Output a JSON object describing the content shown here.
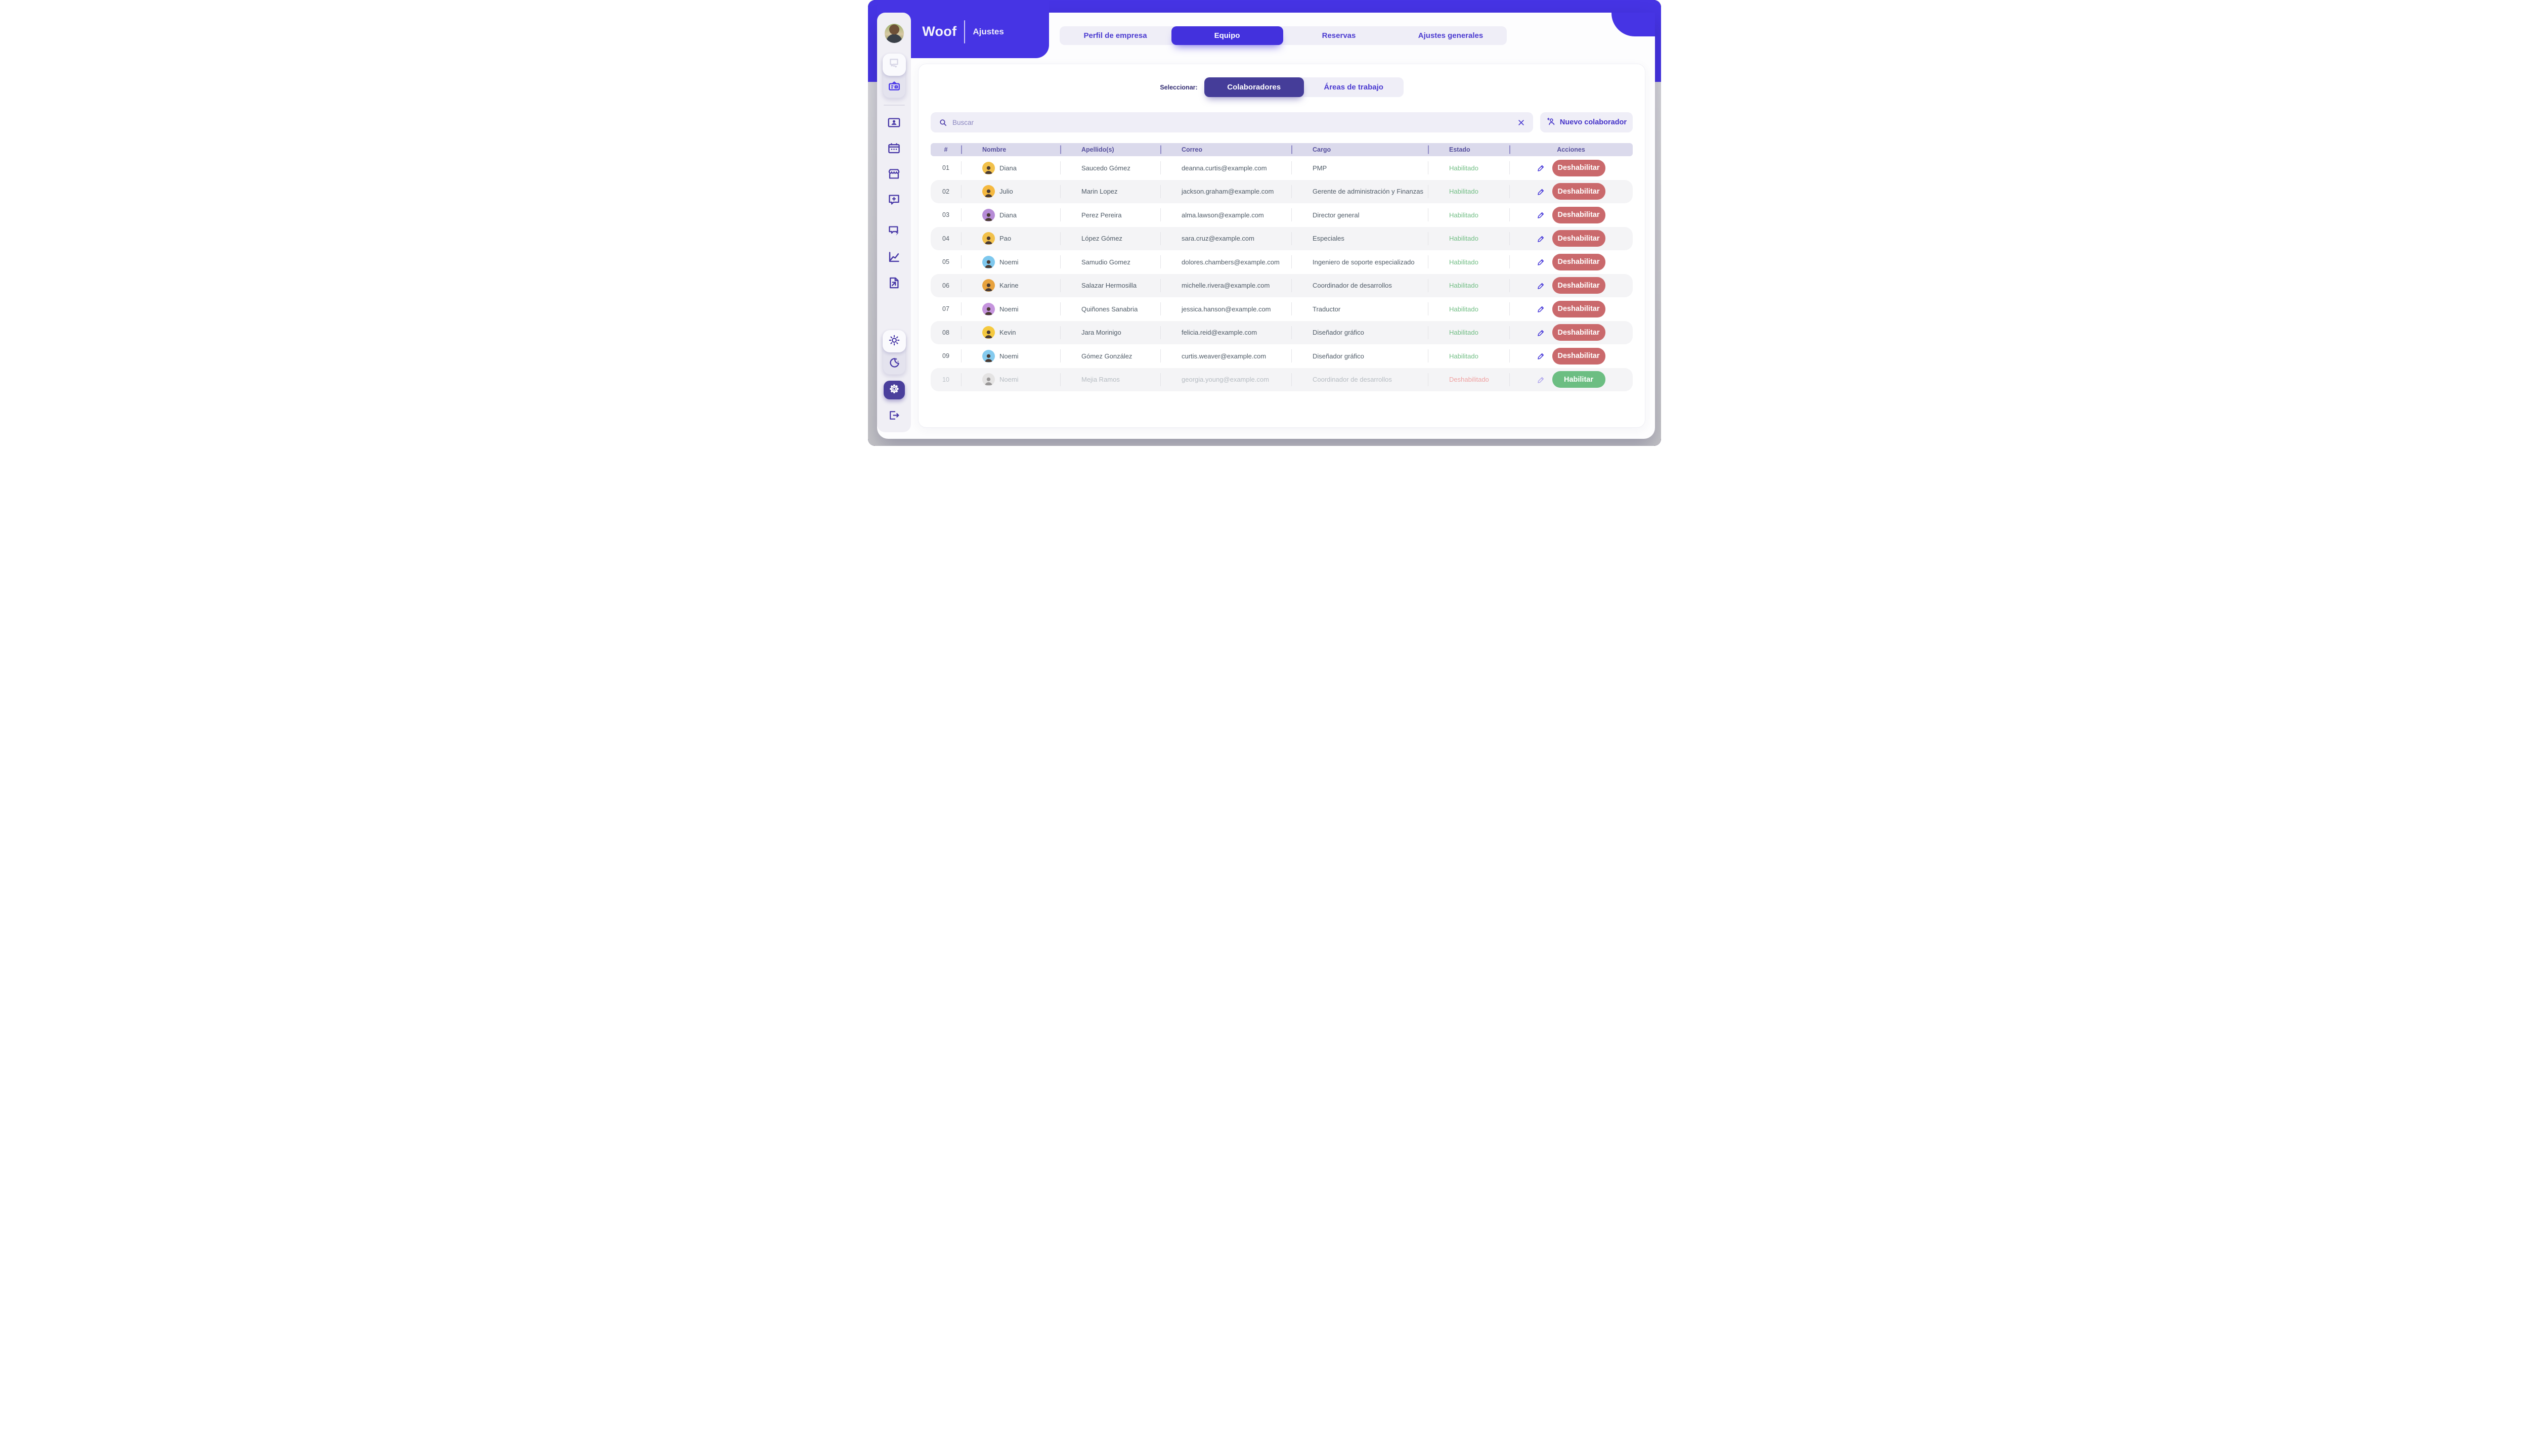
{
  "brand": {
    "name": "Woof",
    "section": "Ajustes"
  },
  "tabs": [
    {
      "label": "Perfil de empresa",
      "active": false
    },
    {
      "label": "Equipo",
      "active": true
    },
    {
      "label": "Reservas",
      "active": false
    },
    {
      "label": "Ajustes generales",
      "active": false
    }
  ],
  "selector": {
    "label": "Seleccionar:",
    "options": [
      {
        "label": "Colaboradores",
        "active": true
      },
      {
        "label": "Áreas de trabajo",
        "active": false
      }
    ]
  },
  "search": {
    "placeholder": "Buscar"
  },
  "toolbar": {
    "new_collaborator_label": "Nuevo colaborador"
  },
  "table": {
    "columns": [
      "#",
      "Nombre",
      "Apellido(s)",
      "Correo",
      "Cargo",
      "Estado",
      "Acciones"
    ],
    "rows": [
      {
        "num": "01",
        "nombre": "Diana",
        "apellidos": "Saucedo Gómez",
        "correo": "deanna.curtis@example.com",
        "cargo": "PMP",
        "estado": "Habilitado",
        "action": "Deshabilitar",
        "enabled": true,
        "avatar_color": "#F2C14B"
      },
      {
        "num": "02",
        "nombre": "Julio",
        "apellidos": "Marin Lopez",
        "correo": "jackson.graham@example.com",
        "cargo": "Gerente de administración y Finanzas",
        "estado": "Habilitado",
        "action": "Deshabilitar",
        "enabled": true,
        "avatar_color": "#F5B940"
      },
      {
        "num": "03",
        "nombre": "Diana",
        "apellidos": "Perez Pereira",
        "correo": "alma.lawson@example.com",
        "cargo": "Director general",
        "estado": "Habilitado",
        "action": "Deshabilitar",
        "enabled": true,
        "avatar_color": "#B68BD6"
      },
      {
        "num": "04",
        "nombre": "Pao",
        "apellidos": "López Gómez",
        "correo": "sara.cruz@example.com",
        "cargo": "Especiales",
        "estado": "Habilitado",
        "action": "Deshabilitar",
        "enabled": true,
        "avatar_color": "#F2C14B"
      },
      {
        "num": "05",
        "nombre": "Noemi",
        "apellidos": "Samudio Gomez",
        "correo": "dolores.chambers@example.com",
        "cargo": "Ingeniero de soporte especializado",
        "estado": "Habilitado",
        "action": "Deshabilitar",
        "enabled": true,
        "avatar_color": "#7EC8EE"
      },
      {
        "num": "06",
        "nombre": "Karine",
        "apellidos": "Salazar Hermosilla",
        "correo": "michelle.rivera@example.com",
        "cargo": "Coordinador de desarrollos",
        "estado": "Habilitado",
        "action": "Deshabilitar",
        "enabled": true,
        "avatar_color": "#E8A23D"
      },
      {
        "num": "07",
        "nombre": "Noemi",
        "apellidos": "Quiñones Sanabria",
        "correo": "jessica.hanson@example.com",
        "cargo": "Traductor",
        "estado": "Habilitado",
        "action": "Deshabilitar",
        "enabled": true,
        "avatar_color": "#C594DD"
      },
      {
        "num": "08",
        "nombre": "Kevin",
        "apellidos": "Jara Morinigo",
        "correo": "felicia.reid@example.com",
        "cargo": "Diseñador gráfico",
        "estado": "Habilitado",
        "action": "Deshabilitar",
        "enabled": true,
        "avatar_color": "#F5C93F"
      },
      {
        "num": "09",
        "nombre": "Noemi",
        "apellidos": "Gómez González",
        "correo": "curtis.weaver@example.com",
        "cargo": "Diseñador gráfico",
        "estado": "Habilitado",
        "action": "Deshabilitar",
        "enabled": true,
        "avatar_color": "#85CBEF"
      },
      {
        "num": "10",
        "nombre": "Noemi",
        "apellidos": "Mejia Ramos",
        "correo": "georgia.young@example.com",
        "cargo": "Coordinador de desarrollos",
        "estado": "Deshabilitado",
        "action": "Habilitar",
        "enabled": false,
        "avatar_color": "#D9D4CB"
      }
    ]
  },
  "sidebar_icons": [
    "chat-icon",
    "business-card-icon",
    "id-card-icon",
    "calendar-icon",
    "store-icon",
    "chat-plus-icon",
    "chat-flash-icon",
    "chart-icon",
    "file-export-icon",
    "sun-icon",
    "moon-icon",
    "gear-icon",
    "logout-icon"
  ],
  "colors": {
    "header_purple": "#4634E4",
    "active_tab": "#4331DD",
    "segment_active": "#453D99",
    "enabled_green": "#72BE85",
    "disabled_red_text": "#EFA3A3",
    "disable_button": "#CA696C",
    "enable_button": "#6CBE82",
    "table_header_bg": "#DBDAEC",
    "sidebar_bg": "#F0EFF5"
  }
}
